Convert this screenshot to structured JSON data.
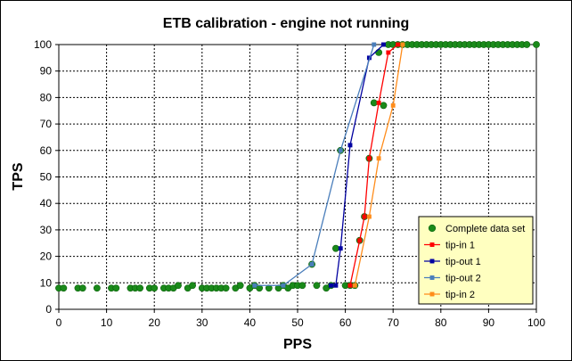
{
  "chart_data": {
    "type": "scatter",
    "title": "ETB calibration - engine not running",
    "xlabel": "PPS",
    "ylabel": "TPS",
    "xlim": [
      0,
      100
    ],
    "ylim": [
      0,
      100
    ],
    "x_ticks": [
      "0",
      "10",
      "20",
      "30",
      "40",
      "50",
      "60",
      "70",
      "80",
      "90",
      "100"
    ],
    "y_ticks": [
      "0",
      "10",
      "20",
      "30",
      "40",
      "50",
      "60",
      "70",
      "80",
      "90",
      "100"
    ],
    "grid": true,
    "legend_position": "bottom-right",
    "series": [
      {
        "name": "Complete data set",
        "color": "#1a8a1a",
        "mode": "markers",
        "x": [
          0,
          1,
          4,
          5,
          8,
          11,
          12,
          15,
          16,
          17,
          19,
          20,
          22,
          23,
          24,
          25,
          27,
          28,
          30,
          31,
          32,
          33,
          34,
          35,
          37,
          38,
          40,
          41,
          42,
          44,
          46,
          47,
          48,
          49,
          50,
          51,
          53,
          54,
          56,
          57,
          58,
          59,
          60,
          61,
          62,
          63,
          64,
          65,
          66,
          67,
          68,
          69,
          70,
          71,
          72,
          73,
          74,
          75,
          76,
          77,
          78,
          79,
          80,
          81,
          82,
          83,
          84,
          85,
          86,
          87,
          88,
          89,
          90,
          91,
          92,
          93,
          94,
          95,
          96,
          97,
          98,
          100
        ],
        "y": [
          8,
          8,
          8,
          8,
          8,
          8,
          8,
          8,
          8,
          8,
          8,
          8,
          8,
          8,
          8,
          9,
          8,
          9,
          8,
          8,
          8,
          8,
          8,
          8,
          8,
          9,
          8,
          9,
          8,
          8,
          8,
          9,
          8,
          9,
          9,
          9,
          17,
          9,
          8,
          9,
          23,
          60,
          9,
          9,
          9,
          26,
          35,
          57,
          78,
          97,
          77,
          100,
          100,
          100,
          100,
          100,
          100,
          100,
          100,
          100,
          100,
          100,
          100,
          100,
          100,
          100,
          100,
          100,
          100,
          100,
          100,
          100,
          100,
          100,
          100,
          100,
          100,
          100,
          100,
          100,
          100,
          100
        ]
      },
      {
        "name": "tip-in 1",
        "color": "#ff0000",
        "mode": "lines+markers",
        "x": [
          61,
          63,
          64,
          65,
          67,
          69,
          71
        ],
        "y": [
          9,
          26,
          35,
          57,
          78,
          97,
          100
        ]
      },
      {
        "name": "tip-out 1",
        "color": "#0000a0",
        "mode": "lines+markers",
        "x": [
          68,
          65,
          61,
          59,
          58,
          57
        ],
        "y": [
          100,
          95,
          62,
          23,
          9,
          9
        ]
      },
      {
        "name": "tip-out 2",
        "color": "#4a7ebb",
        "mode": "lines+markers",
        "x": [
          66,
          59,
          53,
          47,
          41
        ],
        "y": [
          100,
          60,
          17,
          9,
          9
        ]
      },
      {
        "name": "tip-in 2",
        "color": "#ff8c1a",
        "mode": "lines+markers",
        "x": [
          62,
          65,
          67,
          70,
          72
        ],
        "y": [
          9,
          35,
          57,
          77,
          100
        ]
      }
    ]
  }
}
